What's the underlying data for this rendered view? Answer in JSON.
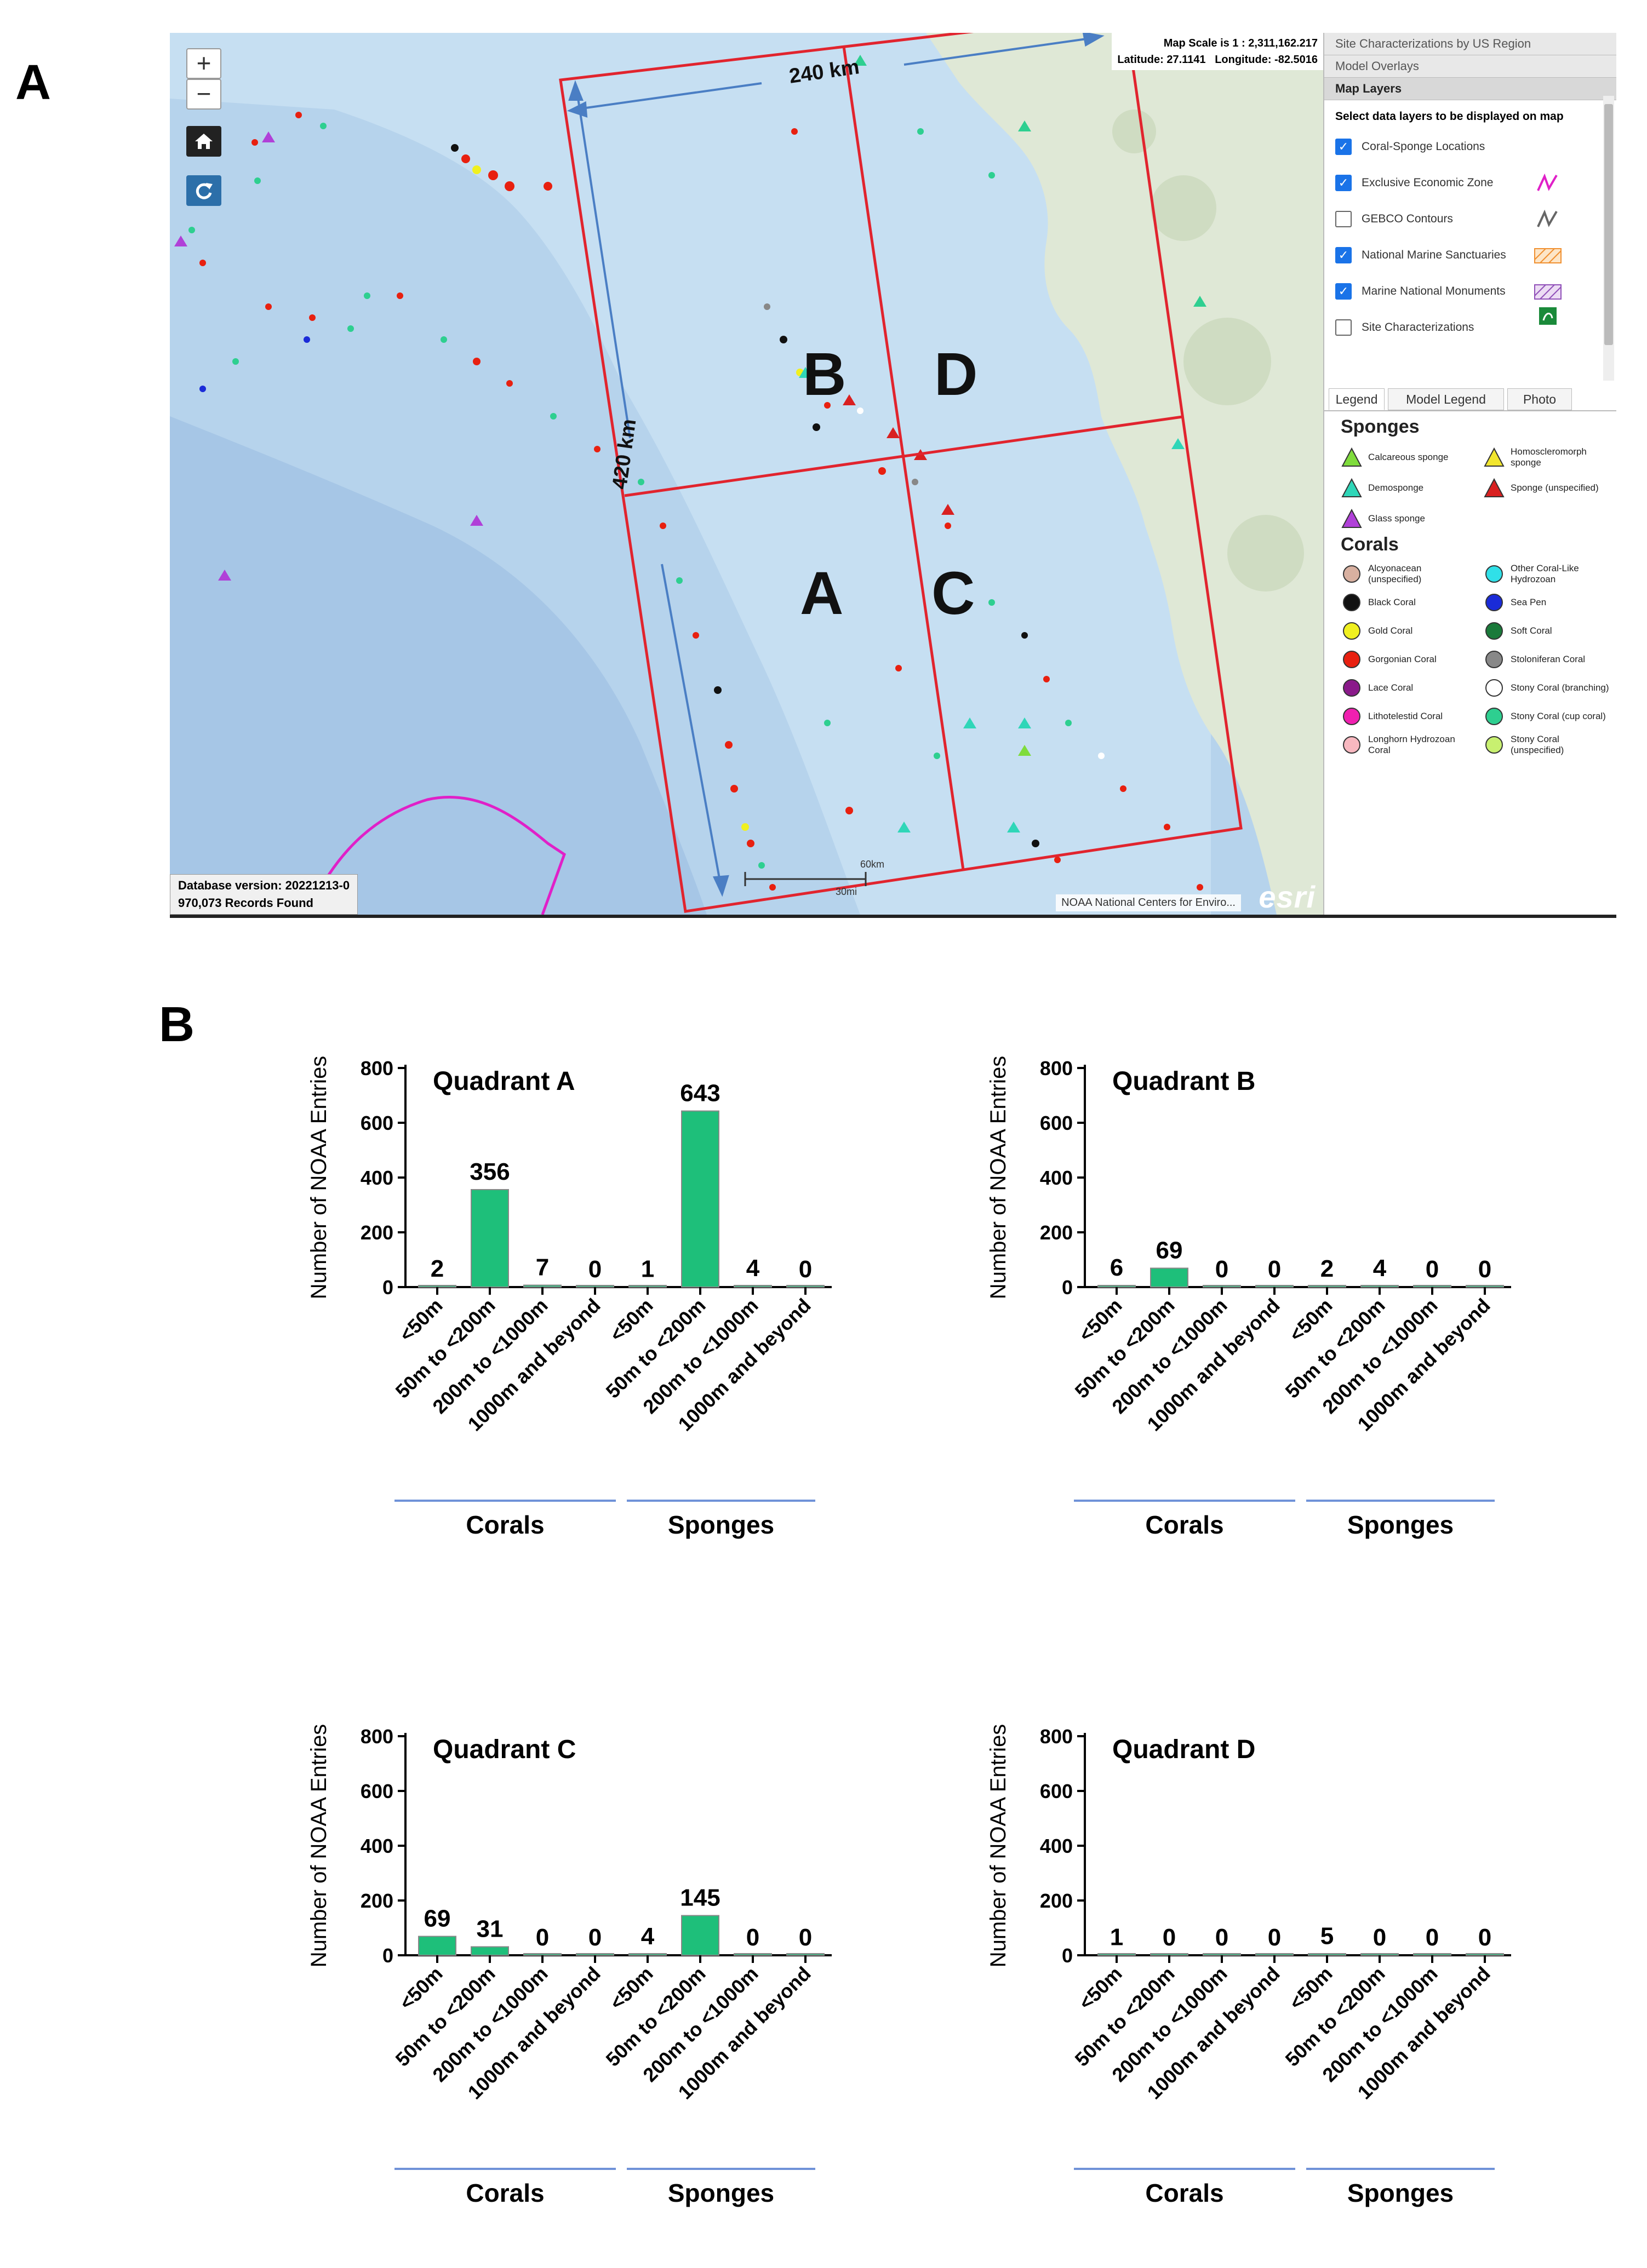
{
  "panel_labels": {
    "a": "A",
    "b": "B"
  },
  "map": {
    "zoom_in_label": "+",
    "zoom_out_label": "−",
    "home_icon": "home-icon",
    "refresh_icon": "refresh-icon",
    "map_scale": "Map Scale is 1 : 2,311,162.217",
    "latitude": "Latitude: 27.1141",
    "longitude": "Longitude: -82.5016",
    "database_version": "Database version: 20221213-0",
    "records_found": "970,073 Records Found",
    "attribution": "NOAA National Centers for Enviro...",
    "esri_logo": "esri",
    "scalebar_km": "60km",
    "scalebar_mi": "30mi",
    "quadrant_letters": {
      "a": "A",
      "b": "B",
      "c": "C",
      "d": "D"
    },
    "width_label": "240 km",
    "height_label": "420 km",
    "colors": {
      "grid_red": "#e1242e",
      "ocean": "#b6d3ec",
      "land": "#dfe8d6",
      "arrow": "#4a7ec4"
    }
  },
  "sidebar": {
    "headers": [
      "Site Characterizations by US Region",
      "Model Overlays",
      "Map Layers"
    ],
    "map_layers_title": "Select data layers to be displayed on map",
    "layers": [
      {
        "label": "Coral-Sponge Locations",
        "checked": true
      },
      {
        "label": "Exclusive Economic Zone",
        "checked": true
      },
      {
        "label": "GEBCO Contours",
        "checked": false
      },
      {
        "label": "National Marine Sanctuaries",
        "checked": true
      },
      {
        "label": "Marine National Monuments",
        "checked": true
      },
      {
        "label": "Site Characterizations",
        "checked": false
      }
    ],
    "tabs": [
      "Legend",
      "Model Legend",
      "Photo"
    ],
    "legend": {
      "sponges_title": "Sponges",
      "sponges": [
        {
          "label": "Calcareous sponge",
          "color": "#7fdc3c"
        },
        {
          "label": "Homoscleromorph sponge",
          "color": "#f2e62e"
        },
        {
          "label": "Demosponge",
          "color": "#2fd6b8"
        },
        {
          "label": "Sponge (unspecified)",
          "color": "#d92020"
        },
        {
          "label": "Glass sponge",
          "color": "#b040d8"
        }
      ],
      "corals_title": "Corals",
      "corals": [
        {
          "label": "Alcyonacean (unspecified)",
          "color": "#d8b0a0"
        },
        {
          "label": "Other Coral-Like Hydrozoan",
          "color": "#30e0e8"
        },
        {
          "label": "Black Coral",
          "color": "#111111"
        },
        {
          "label": "Sea Pen",
          "color": "#1a2bd8"
        },
        {
          "label": "Gold Coral",
          "color": "#f0f020"
        },
        {
          "label": "Soft Coral",
          "color": "#1a7a3a"
        },
        {
          "label": "Gorgonian Coral",
          "color": "#e82010"
        },
        {
          "label": "Stoloniferan Coral",
          "color": "#888888"
        },
        {
          "label": "Lace Coral",
          "color": "#8a1a8a"
        },
        {
          "label": "Stony Coral (branching)",
          "color": "#ffffff"
        },
        {
          "label": "Lithotelestid Coral",
          "color": "#f020b0"
        },
        {
          "label": "Stony Coral (cup coral)",
          "color": "#2ecf90"
        },
        {
          "label": "Longhorn Hydrozoan Coral",
          "color": "#f8b8c0"
        },
        {
          "label": "Stony Coral (unspecified)",
          "color": "#c8f070"
        }
      ]
    }
  },
  "charts_common": {
    "ylabel": "Number of NOAA Entries",
    "yticks": [
      0,
      200,
      400,
      600,
      800
    ],
    "categories": [
      "<50m",
      "50m to <200m",
      "200m to <1000m",
      "1000m and beyond",
      "<50m",
      "50m to <200m",
      "200m to <1000m",
      "1000m and beyond"
    ],
    "group_labels": [
      "Corals",
      "Sponges"
    ],
    "bar_color": "#1ebf7a"
  },
  "chart_data": [
    {
      "type": "bar",
      "title": "Quadrant A",
      "ylim": [
        0,
        800
      ],
      "categories": [
        "<50m",
        "50m to <200m",
        "200m to <1000m",
        "1000m and beyond",
        "<50m",
        "50m to <200m",
        "200m to <1000m",
        "1000m and beyond"
      ],
      "values": [
        2,
        356,
        7,
        0,
        1,
        643,
        4,
        0
      ],
      "groups": [
        "Corals",
        "Sponges"
      ],
      "ylabel": "Number of NOAA Entries"
    },
    {
      "type": "bar",
      "title": "Quadrant B",
      "ylim": [
        0,
        800
      ],
      "categories": [
        "<50m",
        "50m to <200m",
        "200m to <1000m",
        "1000m and beyond",
        "<50m",
        "50m to <200m",
        "200m to <1000m",
        "1000m and beyond"
      ],
      "values": [
        6,
        69,
        0,
        0,
        2,
        4,
        0,
        0
      ],
      "groups": [
        "Corals",
        "Sponges"
      ],
      "ylabel": "Number of NOAA Entries"
    },
    {
      "type": "bar",
      "title": "Quadrant C",
      "ylim": [
        0,
        800
      ],
      "categories": [
        "<50m",
        "50m to <200m",
        "200m to <1000m",
        "1000m and beyond",
        "<50m",
        "50m to <200m",
        "200m to <1000m",
        "1000m and beyond"
      ],
      "values": [
        69,
        31,
        0,
        0,
        4,
        145,
        0,
        0
      ],
      "groups": [
        "Corals",
        "Sponges"
      ],
      "ylabel": "Number of NOAA Entries"
    },
    {
      "type": "bar",
      "title": "Quadrant D",
      "ylim": [
        0,
        800
      ],
      "categories": [
        "<50m",
        "50m to <200m",
        "200m to <1000m",
        "1000m and beyond",
        "<50m",
        "50m to <200m",
        "200m to <1000m",
        "1000m and beyond"
      ],
      "values": [
        1,
        0,
        0,
        0,
        5,
        0,
        0,
        0
      ],
      "groups": [
        "Corals",
        "Sponges"
      ],
      "ylabel": "Number of NOAA Entries"
    }
  ]
}
